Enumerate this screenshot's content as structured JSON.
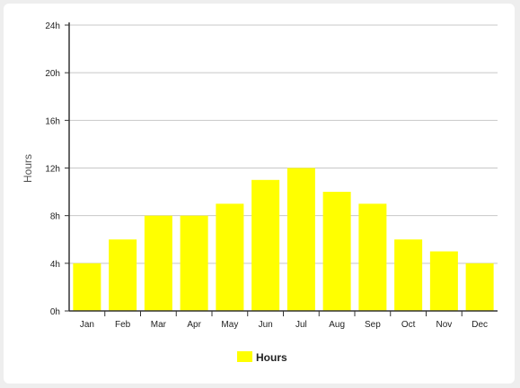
{
  "chart_data": {
    "type": "bar",
    "categories": [
      "Jan",
      "Feb",
      "Mar",
      "Apr",
      "May",
      "Jun",
      "Jul",
      "Aug",
      "Sep",
      "Oct",
      "Nov",
      "Dec"
    ],
    "series": [
      {
        "name": "Hours",
        "values": [
          4,
          6,
          8,
          8,
          9,
          11,
          12,
          10,
          9,
          6,
          5,
          4
        ],
        "color": "#ffff00"
      }
    ],
    "title": "",
    "xlabel": "",
    "ylabel": "Hours",
    "ylim": [
      0,
      24
    ],
    "yticks": [
      0,
      4,
      8,
      12,
      16,
      20,
      24
    ],
    "ytick_labels": [
      "0h",
      "4h",
      "8h",
      "12h",
      "16h",
      "20h",
      "24h"
    ],
    "grid": true,
    "legend": {
      "position": "bottom",
      "label": "Hours"
    }
  }
}
